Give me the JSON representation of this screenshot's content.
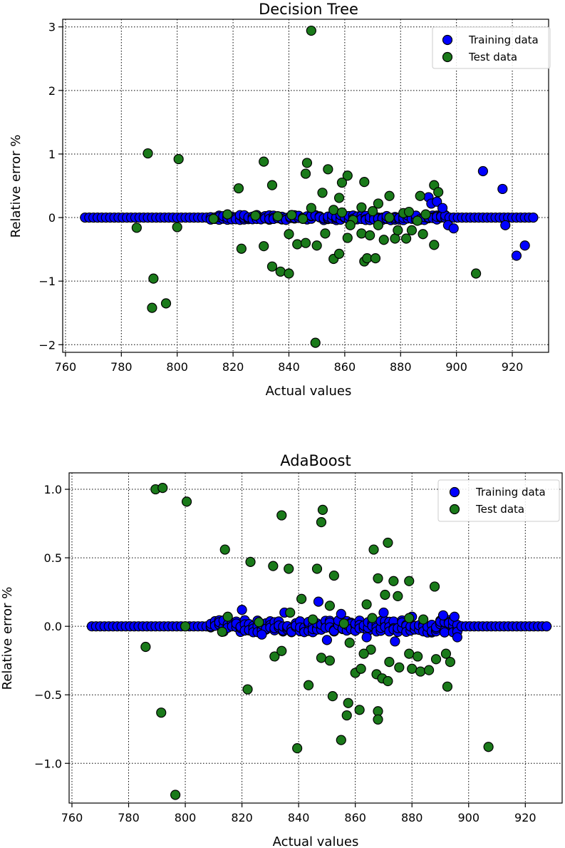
{
  "colors": {
    "training": "#0000ff",
    "test": "#1a7a1a",
    "edge": "#000000"
  },
  "charts": [
    {
      "type": "scatter",
      "title": "Decision Tree",
      "xlabel": "Actual values",
      "ylabel": "Relative error %",
      "xlim": [
        759,
        933
      ],
      "ylim": [
        -2.12,
        3.12
      ],
      "xticks": [
        760,
        780,
        800,
        820,
        840,
        860,
        880,
        900,
        920
      ],
      "yticks": [
        -2,
        -1,
        0,
        1,
        2,
        3
      ],
      "ytick_labels": [
        "−2",
        "−1",
        "0",
        "1",
        "2",
        "3"
      ],
      "grid": true,
      "legend": {
        "position": "top-right",
        "entries": [
          "Training data",
          "Test data"
        ]
      },
      "series": [
        {
          "name": "Training data",
          "band": {
            "x_from": 767,
            "x_to": 928,
            "step": 1.5,
            "y": 0.0,
            "jitter": 0.0,
            "dense_from": 812,
            "dense_to": 896,
            "dense_jitter": 0.04
          },
          "points": [
            [
              890,
              0.32
            ],
            [
              891,
              0.22
            ],
            [
              893,
              0.25
            ],
            [
              895,
              0.15
            ],
            [
              897,
              -0.12
            ],
            [
              899,
              -0.17
            ],
            [
              909.5,
              0.73
            ],
            [
              916.5,
              0.45
            ],
            [
              917.5,
              -0.12
            ],
            [
              921.5,
              -0.6
            ],
            [
              924.5,
              -0.44
            ]
          ]
        },
        {
          "name": "Test data",
          "points": [
            [
              848,
              2.94
            ],
            [
              789.5,
              1.01
            ],
            [
              800.5,
              0.92
            ],
            [
              831,
              0.88
            ],
            [
              846.5,
              0.86
            ],
            [
              854,
              0.76
            ],
            [
              846,
              0.69
            ],
            [
              861,
              0.66
            ],
            [
              859,
              0.55
            ],
            [
              867,
              0.56
            ],
            [
              822,
              0.46
            ],
            [
              834,
              0.51
            ],
            [
              892,
              0.51
            ],
            [
              893.5,
              0.4
            ],
            [
              876,
              0.34
            ],
            [
              887,
              0.34
            ],
            [
              852,
              0.39
            ],
            [
              872,
              0.22
            ],
            [
              866,
              0.16
            ],
            [
              881,
              0.07
            ],
            [
              856,
              0.12
            ],
            [
              841,
              0.04
            ],
            [
              848,
              0.15
            ],
            [
              858,
              0.31
            ],
            [
              870,
              0.1
            ],
            [
              785.5,
              -0.16
            ],
            [
              800,
              -0.15
            ],
            [
              823,
              -0.49
            ],
            [
              831,
              -0.45
            ],
            [
              834,
              -0.77
            ],
            [
              837,
              -0.85
            ],
            [
              840,
              -0.88
            ],
            [
              840,
              -0.26
            ],
            [
              843,
              -0.42
            ],
            [
              846,
              -0.4
            ],
            [
              850,
              -0.44
            ],
            [
              853,
              -0.25
            ],
            [
              856,
              -0.65
            ],
            [
              858,
              -0.57
            ],
            [
              861,
              -0.32
            ],
            [
              866,
              -0.25
            ],
            [
              867,
              -0.69
            ],
            [
              868,
              -0.64
            ],
            [
              869,
              -0.28
            ],
            [
              871,
              -0.64
            ],
            [
              874,
              -0.35
            ],
            [
              878,
              -0.33
            ],
            [
              879,
              -0.2
            ],
            [
              882,
              -0.33
            ],
            [
              884,
              -0.2
            ],
            [
              888,
              -0.26
            ],
            [
              892,
              -0.43
            ],
            [
              907,
              -0.88
            ],
            [
              791.5,
              -0.96
            ],
            [
              791,
              -1.42
            ],
            [
              796,
              -1.35
            ],
            [
              849.5,
              -1.97
            ],
            [
              863,
              -0.04
            ],
            [
              876,
              0.0
            ],
            [
              889,
              0.05
            ],
            [
              886,
              -0.05
            ],
            [
              828,
              0.03
            ],
            [
              818,
              0.05
            ],
            [
              813,
              -0.02
            ],
            [
              836,
              0.02
            ],
            [
              845,
              -0.02
            ],
            [
              859,
              0.08
            ],
            [
              862,
              -0.12
            ],
            [
              872,
              -0.12
            ],
            [
              883,
              0.09
            ]
          ]
        }
      ]
    },
    {
      "type": "scatter",
      "title": "AdaBoost",
      "xlabel": "Actual values",
      "ylabel": "Relative error %",
      "xlim": [
        759,
        933
      ],
      "ylim": [
        -1.29,
        1.12
      ],
      "xticks": [
        760,
        780,
        800,
        820,
        840,
        860,
        880,
        900,
        920
      ],
      "yticks": [
        -1.0,
        -0.5,
        0.0,
        0.5,
        1.0
      ],
      "ytick_labels": [
        "−1.0",
        "−0.5",
        "0.0",
        "0.5",
        "1.0"
      ],
      "grid": true,
      "legend": {
        "position": "top-right",
        "entries": [
          "Training data",
          "Test data"
        ]
      },
      "series": [
        {
          "name": "Training data",
          "band": {
            "x_from": 767,
            "x_to": 928,
            "step": 1.5,
            "y": 0.0,
            "jitter": 0.0,
            "dense_from": 808,
            "dense_to": 896,
            "dense_jitter": 0.045
          },
          "points": [
            [
              820,
              0.12
            ],
            [
              835,
              0.1
            ],
            [
              847,
              0.18
            ],
            [
              855,
              0.09
            ],
            [
              870,
              0.1
            ],
            [
              880,
              0.07
            ],
            [
              891,
              0.08
            ],
            [
              895,
              0.07
            ],
            [
              896,
              -0.08
            ],
            [
              874,
              -0.11
            ],
            [
              864,
              -0.08
            ],
            [
              850,
              -0.1
            ],
            [
              827,
              -0.06
            ]
          ]
        },
        {
          "name": "Test data",
          "points": [
            [
              789.5,
              1.0
            ],
            [
              792,
              1.01
            ],
            [
              800.5,
              0.91
            ],
            [
              834,
              0.81
            ],
            [
              848.5,
              0.85
            ],
            [
              848,
              0.76
            ],
            [
              814,
              0.56
            ],
            [
              866.5,
              0.56
            ],
            [
              871.5,
              0.61
            ],
            [
              823,
              0.47
            ],
            [
              831,
              0.44
            ],
            [
              836.5,
              0.42
            ],
            [
              846.5,
              0.42
            ],
            [
              852.5,
              0.37
            ],
            [
              868,
              0.35
            ],
            [
              873.5,
              0.33
            ],
            [
              879,
              0.33
            ],
            [
              888,
              0.29
            ],
            [
              870.5,
              0.23
            ],
            [
              875,
              0.22
            ],
            [
              841,
              0.2
            ],
            [
              864,
              0.16
            ],
            [
              851,
              0.15
            ],
            [
              786,
              -0.15
            ],
            [
              791.5,
              -0.63
            ],
            [
              796.5,
              -1.23
            ],
            [
              822,
              -0.46
            ],
            [
              831.5,
              -0.22
            ],
            [
              834,
              -0.18
            ],
            [
              839.5,
              -0.89
            ],
            [
              843.5,
              -0.43
            ],
            [
              848,
              -0.23
            ],
            [
              851,
              -0.25
            ],
            [
              852,
              -0.51
            ],
            [
              855,
              -0.83
            ],
            [
              857,
              -0.65
            ],
            [
              857.5,
              -0.56
            ],
            [
              860,
              -0.34
            ],
            [
              862,
              -0.31
            ],
            [
              861.5,
              -0.61
            ],
            [
              865.5,
              -0.17
            ],
            [
              867.5,
              -0.35
            ],
            [
              868,
              -0.62
            ],
            [
              868,
              -0.68
            ],
            [
              869.5,
              -0.38
            ],
            [
              871.5,
              -0.4
            ],
            [
              872,
              -0.26
            ],
            [
              875.5,
              -0.3
            ],
            [
              879,
              -0.2
            ],
            [
              880,
              -0.31
            ],
            [
              882,
              -0.22
            ],
            [
              883,
              -0.33
            ],
            [
              886,
              -0.32
            ],
            [
              888.5,
              -0.24
            ],
            [
              892,
              -0.2
            ],
            [
              893.5,
              -0.26
            ],
            [
              892.5,
              -0.44
            ],
            [
              907,
              -0.88
            ],
            [
              856,
              0.02
            ],
            [
              866,
              0.06
            ],
            [
              858,
              -0.12
            ],
            [
              863,
              -0.2
            ],
            [
              845,
              0.05
            ],
            [
              837,
              0.1
            ],
            [
              826,
              0.03
            ],
            [
              815,
              0.07
            ],
            [
              879,
              0.06
            ],
            [
              884,
              0.05
            ],
            [
              800,
              0.0
            ],
            [
              813,
              -0.04
            ]
          ]
        }
      ]
    }
  ]
}
